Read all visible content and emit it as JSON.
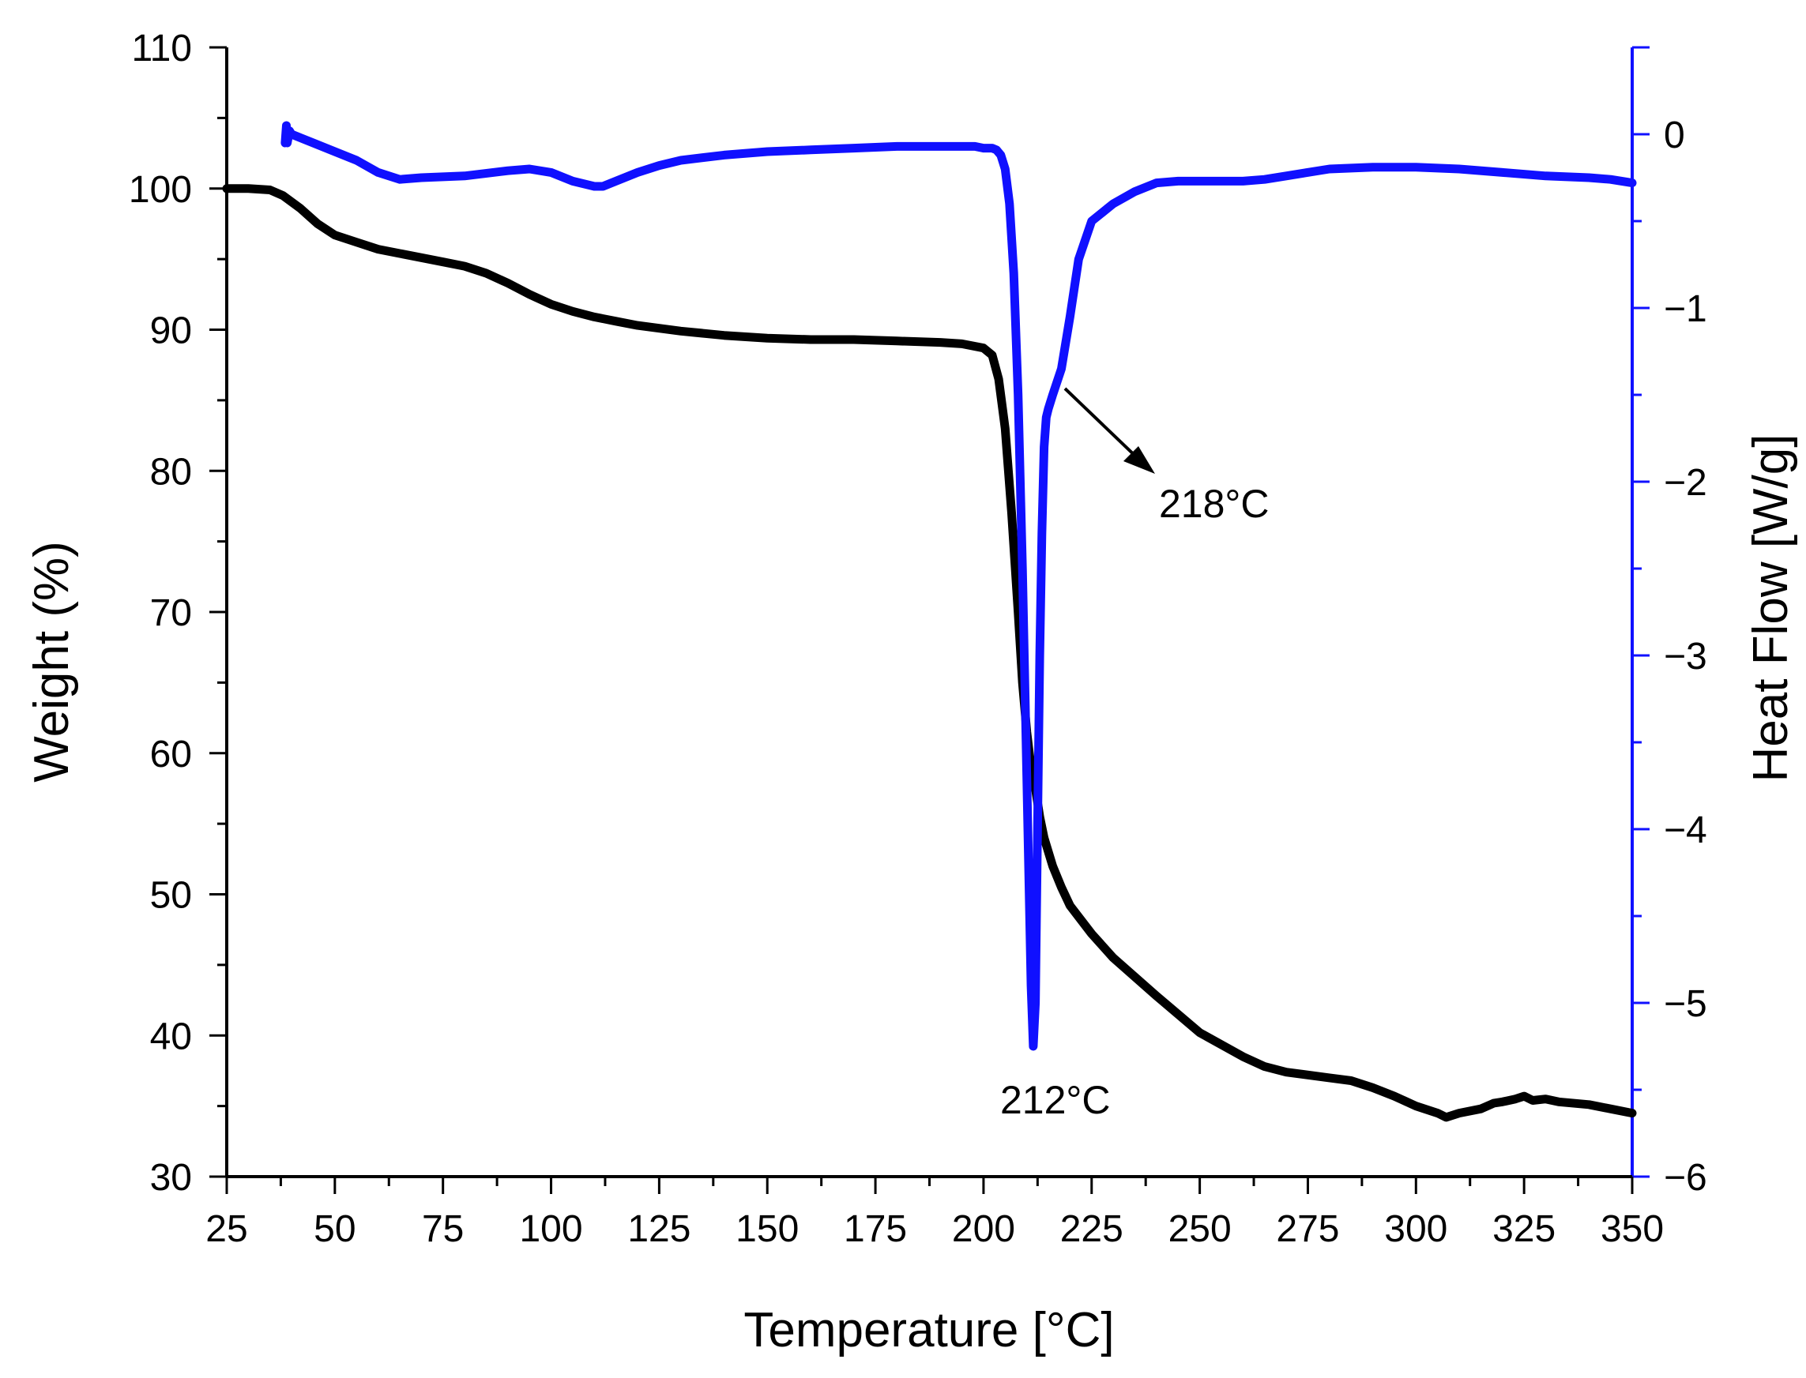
{
  "chart_data": {
    "type": "line",
    "xlabel": "Temperature [°C]",
    "ylabel_left": "Weight (%)",
    "ylabel_right": "Heat Flow [W/g]",
    "xlim": [
      25,
      350
    ],
    "ylim_left": [
      30,
      110
    ],
    "ylim_right": [
      -6,
      0.5
    ],
    "x_ticks": [
      25,
      50,
      75,
      100,
      125,
      150,
      175,
      200,
      225,
      250,
      275,
      300,
      325,
      350
    ],
    "y_left_ticks": [
      30,
      40,
      50,
      60,
      70,
      80,
      90,
      100,
      110
    ],
    "y_right_ticks": [
      -6,
      -5,
      -4,
      -3,
      -2,
      -1,
      0
    ],
    "colors": {
      "weight": "#000000",
      "heat_flow": "#1010ff",
      "axis_right": "#1010ff"
    },
    "series": [
      {
        "name": "Weight",
        "axis": "left",
        "color": "#000000",
        "x": [
          25,
          30,
          35,
          38,
          42,
          46,
          50,
          55,
          60,
          65,
          70,
          75,
          80,
          85,
          90,
          95,
          100,
          105,
          110,
          115,
          120,
          125,
          130,
          140,
          150,
          160,
          170,
          180,
          190,
          195,
          200,
          202,
          203.5,
          205,
          206.5,
          208,
          209,
          210,
          211,
          212,
          213,
          214,
          216,
          218,
          220,
          225,
          230,
          240,
          250,
          260,
          265,
          270,
          280,
          285,
          290,
          295,
          300,
          305,
          307,
          310,
          315,
          318,
          320,
          323,
          325,
          327,
          330,
          333,
          340,
          345,
          350
        ],
        "y": [
          100,
          100,
          99.9,
          99.5,
          98.6,
          97.5,
          96.7,
          96.2,
          95.7,
          95.4,
          95.1,
          94.8,
          94.5,
          94.0,
          93.3,
          92.5,
          91.8,
          91.3,
          90.9,
          90.6,
          90.3,
          90.1,
          89.9,
          89.6,
          89.4,
          89.3,
          89.3,
          89.2,
          89.1,
          89.0,
          88.7,
          88.2,
          86.5,
          83,
          77,
          70,
          65,
          61.5,
          59,
          57.5,
          55.5,
          54,
          52,
          50.5,
          49.2,
          47.2,
          45.5,
          42.8,
          40.2,
          38.5,
          37.8,
          37.4,
          37.0,
          36.8,
          36.3,
          35.7,
          35.0,
          34.5,
          34.2,
          34.5,
          34.8,
          35.2,
          35.3,
          35.5,
          35.7,
          35.4,
          35.5,
          35.3,
          35.1,
          34.8,
          34.5
        ]
      },
      {
        "name": "Heat Flow",
        "axis": "right",
        "color": "#1010ff",
        "x": [
          38.5,
          38.8,
          39,
          39.5,
          40,
          45,
          50,
          55,
          60,
          65,
          70,
          80,
          90,
          95,
          100,
          105,
          110,
          112,
          115,
          120,
          125,
          130,
          140,
          150,
          160,
          170,
          180,
          190,
          195,
          198,
          200,
          202,
          203,
          204,
          205,
          206,
          207,
          208,
          209,
          210,
          210.5,
          211,
          211.5,
          212,
          212.5,
          213,
          213.5,
          214,
          214.5,
          215,
          216,
          218,
          220,
          222,
          225,
          230,
          235,
          240,
          245,
          250,
          255,
          260,
          265,
          270,
          280,
          290,
          300,
          310,
          320,
          330,
          340,
          345,
          350
        ],
        "y": [
          -0.05,
          0.05,
          -0.05,
          0.02,
          0.0,
          -0.05,
          -0.1,
          -0.15,
          -0.22,
          -0.26,
          -0.25,
          -0.24,
          -0.21,
          -0.2,
          -0.22,
          -0.27,
          -0.3,
          -0.3,
          -0.27,
          -0.22,
          -0.18,
          -0.15,
          -0.12,
          -0.1,
          -0.09,
          -0.08,
          -0.07,
          -0.07,
          -0.07,
          -0.07,
          -0.08,
          -0.08,
          -0.09,
          -0.12,
          -0.2,
          -0.4,
          -0.8,
          -1.5,
          -2.5,
          -3.7,
          -4.3,
          -4.9,
          -5.25,
          -5.0,
          -4.0,
          -3.0,
          -2.3,
          -1.8,
          -1.63,
          -1.58,
          -1.5,
          -1.35,
          -1.05,
          -0.72,
          -0.5,
          -0.4,
          -0.33,
          -0.28,
          -0.27,
          -0.27,
          -0.27,
          -0.27,
          -0.26,
          -0.24,
          -0.2,
          -0.19,
          -0.19,
          -0.2,
          -0.22,
          -0.24,
          -0.25,
          -0.26,
          -0.28
        ]
      }
    ],
    "annotations": [
      {
        "text": "212°C",
        "x": 212,
        "y_right": -5.25
      },
      {
        "text": "218°C",
        "x": 218,
        "y_right": -1.5
      }
    ]
  }
}
